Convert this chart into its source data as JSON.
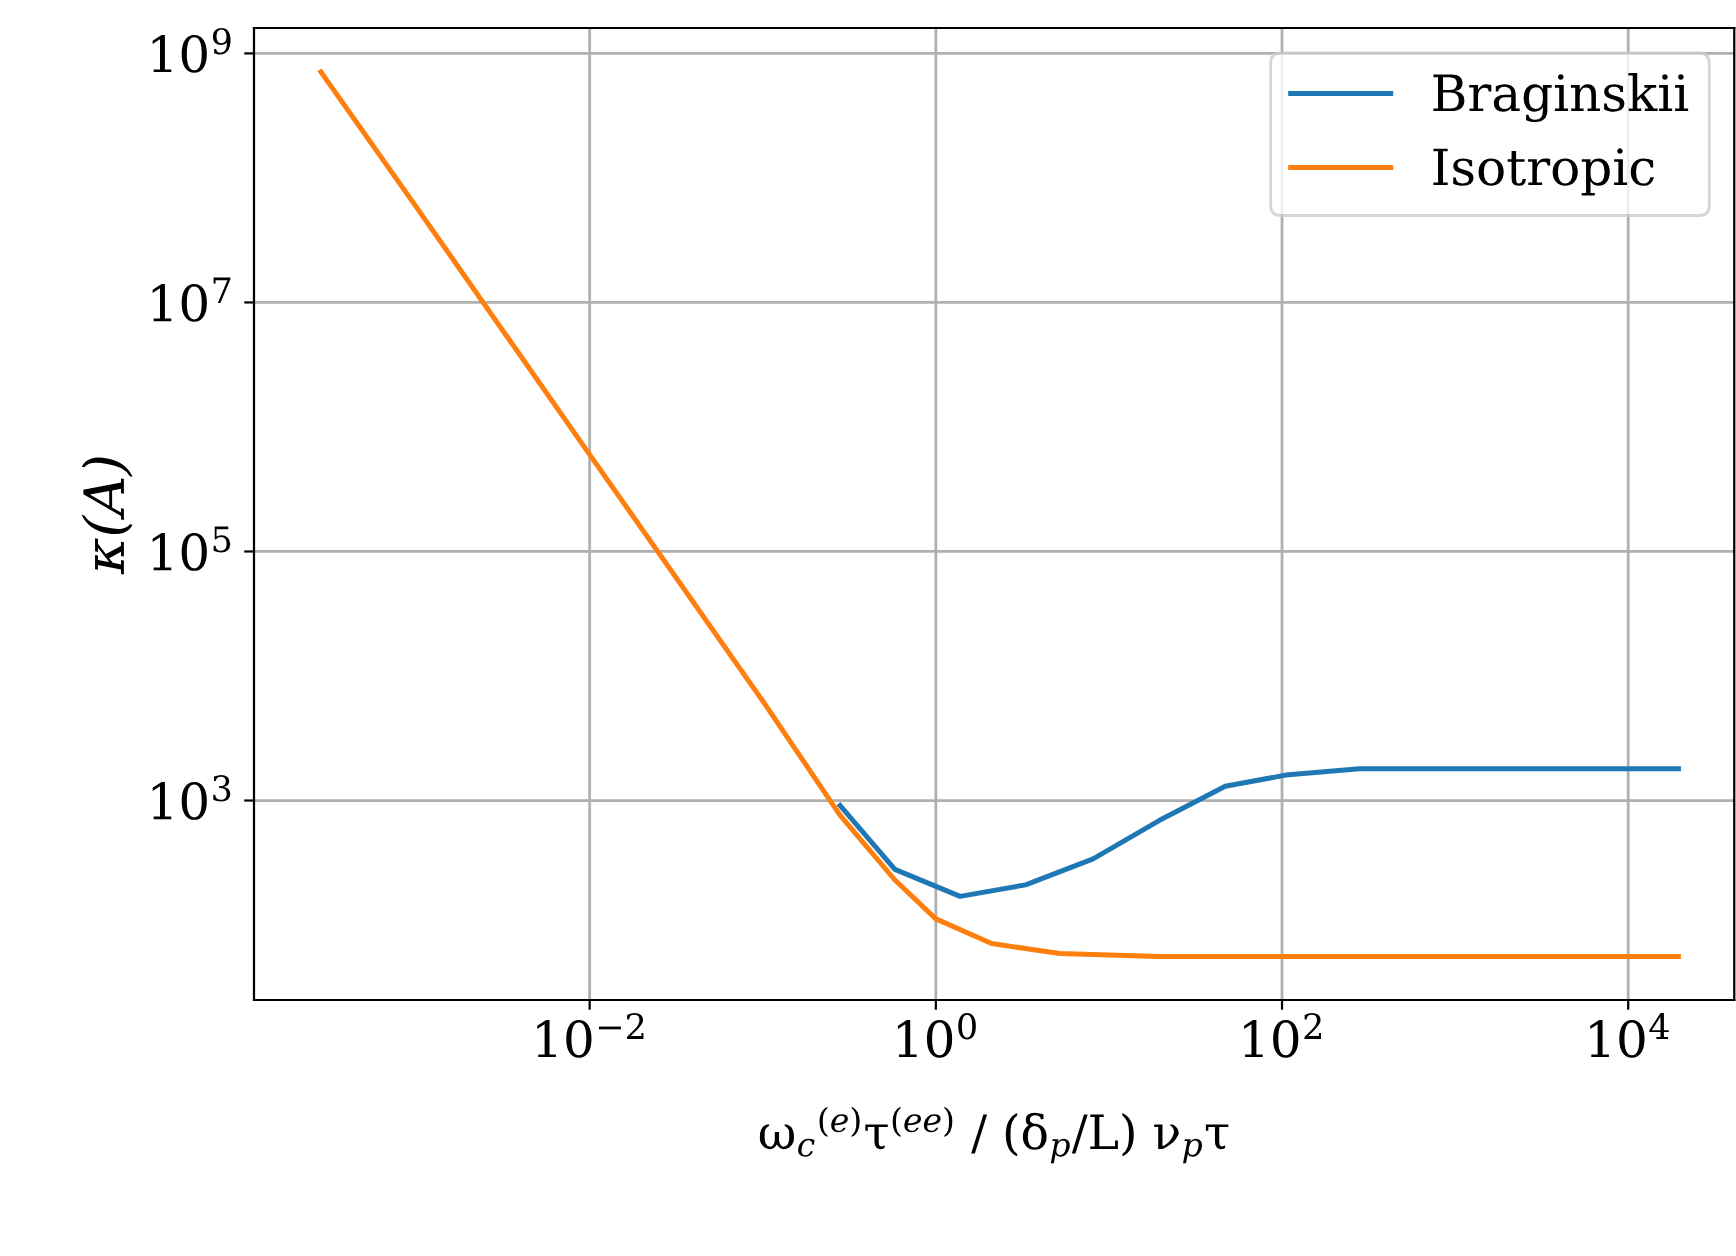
{
  "chart_data": {
    "type": "line",
    "xlabel": "ω$_{c}$$^{(e)}$τ$^{(ee)}$ / (δ$_{p}$/L) ν$_{p}$τ",
    "ylabel": "κ(A)",
    "log": "xy",
    "series": [
      {
        "name": "Braginskii",
        "color": "#1f77b4",
        "x": [
          0.28,
          0.58,
          1.38,
          3.3,
          8.1,
          19.5,
          47,
          105,
          280,
          19500
        ],
        "values": [
          910,
          280,
          170,
          210,
          340,
          690,
          1300,
          1600,
          1800,
          1800
        ]
      },
      {
        "name": "Isotropic",
        "color": "#ff7f0e",
        "x": [
          0.00028,
          0.001,
          0.01,
          0.1,
          0.28,
          0.58,
          1.0,
          2.1,
          5.2,
          19.5,
          19500
        ],
        "values": [
          710000000.0,
          58000000.0,
          600000.0,
          6300,
          760,
          230,
          112,
          71,
          59,
          56,
          56
        ]
      }
    ],
    "xlim": [
      0.000115,
      41000.0
    ],
    "ylim": [
      25,
      1600000000.0
    ],
    "xticks": [
      {
        "value": 0.01,
        "label": "10$^{−2}$"
      },
      {
        "value": 1,
        "label": "10$^{0}$"
      },
      {
        "value": 100,
        "label": "10$^{2}$"
      },
      {
        "value": 10000,
        "label": "10$^{4}$"
      }
    ],
    "yticks": [
      {
        "value": 1000,
        "label": "10$^{3}$"
      },
      {
        "value": 100000,
        "label": "10$^{5}$"
      },
      {
        "value": 10000000,
        "label": "10$^{7}$"
      },
      {
        "value": 1000000000,
        "label": "10$^{9}$"
      }
    ],
    "grid": true,
    "legend": "top right",
    "line_style": "solid",
    "marker": "none"
  }
}
